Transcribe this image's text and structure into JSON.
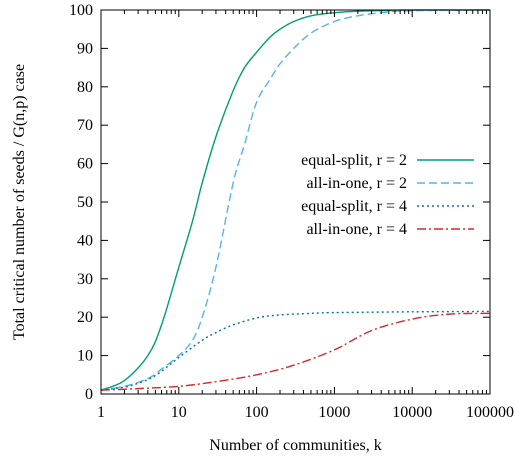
{
  "chart_data": {
    "type": "line",
    "title": "",
    "xlabel": "Number of communities, k",
    "ylabel": "Total critical number of seeds / G(n,p) case",
    "xscale": "log",
    "xlim": [
      1,
      100000
    ],
    "ylim": [
      0,
      100
    ],
    "xticks": [
      {
        "value": 1,
        "label": "1"
      },
      {
        "value": 10,
        "label": "10"
      },
      {
        "value": 100,
        "label": "100"
      },
      {
        "value": 1000,
        "label": "1000"
      },
      {
        "value": 10000,
        "label": "10000"
      },
      {
        "value": 100000,
        "label": "100000"
      }
    ],
    "yticks": [
      {
        "value": 0,
        "label": "0"
      },
      {
        "value": 10,
        "label": "10"
      },
      {
        "value": 20,
        "label": "20"
      },
      {
        "value": 30,
        "label": "30"
      },
      {
        "value": 40,
        "label": "40"
      },
      {
        "value": 50,
        "label": "50"
      },
      {
        "value": 60,
        "label": "60"
      },
      {
        "value": 70,
        "label": "70"
      },
      {
        "value": 80,
        "label": "80"
      },
      {
        "value": 90,
        "label": "90"
      },
      {
        "value": 100,
        "label": "100"
      }
    ],
    "grid": false,
    "legend_position": "right",
    "series": [
      {
        "name": "equal-split, r = 2",
        "color": "#009e73",
        "dash": "solid",
        "x": [
          1,
          2,
          4,
          6,
          10,
          15,
          20,
          30,
          50,
          70,
          100,
          150,
          200,
          300,
          500,
          1000,
          2000,
          5000,
          10000,
          100000
        ],
        "y": [
          1,
          3.5,
          10,
          18,
          33,
          45,
          55,
          67,
          79,
          85,
          89,
          93,
          95,
          97,
          98.5,
          99.3,
          99.7,
          99.9,
          100,
          100
        ]
      },
      {
        "name": "all-in-one, r = 2",
        "color": "#56b4e9",
        "dash": "dashed",
        "x": [
          1,
          2,
          4,
          6,
          10,
          15,
          20,
          30,
          50,
          70,
          100,
          150,
          200,
          300,
          500,
          1000,
          2000,
          5000,
          10000,
          100000
        ],
        "y": [
          1,
          2,
          4,
          6.5,
          10,
          14,
          20,
          33,
          55,
          65,
          76,
          82,
          86,
          90,
          94,
          97,
          98.5,
          99.5,
          99.8,
          100
        ]
      },
      {
        "name": "equal-split, r = 4",
        "color": "#0072b2",
        "dash": "dotted",
        "x": [
          1,
          2,
          3,
          5,
          10,
          20,
          30,
          50,
          100,
          200,
          500,
          1000,
          10000,
          100000
        ],
        "y": [
          1,
          1.8,
          2.8,
          4.8,
          9.5,
          14,
          16,
          18,
          19.8,
          20.6,
          21,
          21.2,
          21.4,
          21.5
        ]
      },
      {
        "name": "all-in-one, r = 4",
        "color": "#d62728",
        "dash": "dashdot",
        "x": [
          1,
          3,
          10,
          30,
          100,
          300,
          1000,
          3000,
          10000,
          30000,
          100000
        ],
        "y": [
          1,
          1.4,
          2,
          3.2,
          5,
          7.5,
          11.5,
          16.5,
          19.5,
          20.8,
          21
        ]
      }
    ]
  }
}
